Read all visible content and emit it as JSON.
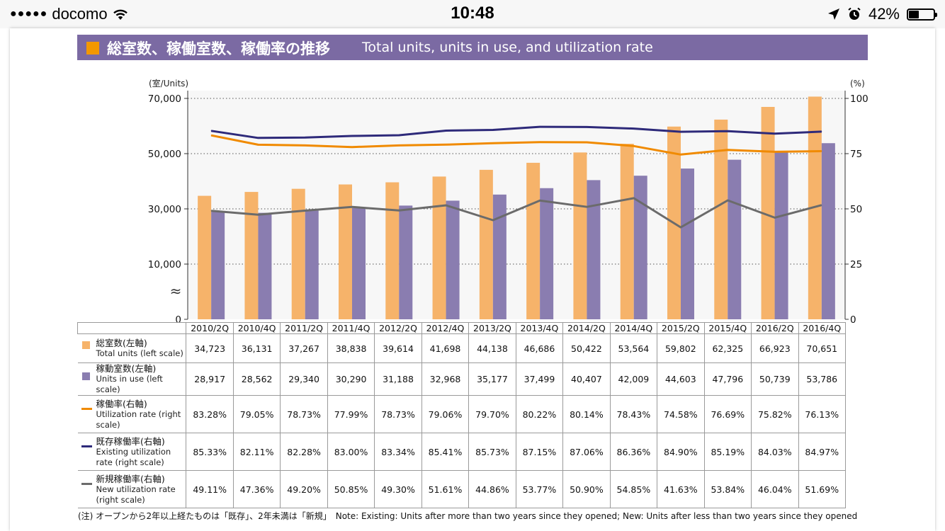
{
  "status_bar": {
    "carrier": "docomo",
    "time": "10:48",
    "battery": "42%",
    "battery_level": 0.42
  },
  "header": {
    "title_jp": "総室数、稼働室数、稼働率の推移",
    "title_en": "Total units, units in use, and utilization rate"
  },
  "chart_data": {
    "type": "bar",
    "left_axis": {
      "label": "(室/Units)",
      "ticks": [
        "0",
        "10,000",
        "30,000",
        "50,000",
        "70,000"
      ],
      "broken_axis_symbol": "≈",
      "segments": [
        {
          "from": 0,
          "to": 0
        },
        {
          "from": 10000,
          "to": 70000
        }
      ]
    },
    "right_axis": {
      "label": "(%)",
      "ticks": [
        "0",
        "25",
        "50",
        "75",
        "100"
      ],
      "ylim": [
        0,
        100
      ]
    },
    "categories": [
      "2010/2Q",
      "2010/4Q",
      "2011/2Q",
      "2011/4Q",
      "2012/2Q",
      "2012/4Q",
      "2013/2Q",
      "2013/4Q",
      "2014/2Q",
      "2014/4Q",
      "2015/2Q",
      "2015/4Q",
      "2016/2Q",
      "2016/4Q"
    ],
    "series": [
      {
        "key": "total",
        "name_jp": "総室数(左軸)",
        "name_en": "Total units (left scale)",
        "kind": "bar",
        "axis": "left",
        "color": "#f6b36a",
        "values": [
          34723,
          36131,
          37267,
          38838,
          39614,
          41698,
          44138,
          46686,
          50422,
          53564,
          59802,
          62325,
          66923,
          70651
        ],
        "labels": [
          "34,723",
          "36,131",
          "37,267",
          "38,838",
          "39,614",
          "41,698",
          "44,138",
          "46,686",
          "50,422",
          "53,564",
          "59,802",
          "62,325",
          "66,923",
          "70,651"
        ]
      },
      {
        "key": "inuse",
        "name_jp": "稼動室数(左軸)",
        "name_en": "Units in use (left scale)",
        "kind": "bar",
        "axis": "left",
        "color": "#8a7db0",
        "values": [
          28917,
          28562,
          29340,
          30290,
          31188,
          32968,
          35177,
          37499,
          40407,
          42009,
          44603,
          47796,
          50739,
          53786
        ],
        "labels": [
          "28,917",
          "28,562",
          "29,340",
          "30,290",
          "31,188",
          "32,968",
          "35,177",
          "37,499",
          "40,407",
          "42,009",
          "44,603",
          "47,796",
          "50,739",
          "53,786"
        ]
      },
      {
        "key": "util",
        "name_jp": "稼働率(右軸)",
        "name_en": "Utilization rate (right scale)",
        "kind": "line",
        "axis": "right",
        "color": "#f08a00",
        "values": [
          83.28,
          79.05,
          78.73,
          77.99,
          78.73,
          79.06,
          79.7,
          80.22,
          80.14,
          78.43,
          74.58,
          76.69,
          75.82,
          76.13
        ],
        "labels": [
          "83.28%",
          "79.05%",
          "78.73%",
          "77.99%",
          "78.73%",
          "79.06%",
          "79.70%",
          "80.22%",
          "80.14%",
          "78.43%",
          "74.58%",
          "76.69%",
          "75.82%",
          "76.13%"
        ]
      },
      {
        "key": "existing",
        "name_jp": "既存稼働率(右軸)",
        "name_en": "Existing utilization rate (right scale)",
        "kind": "line",
        "axis": "right",
        "color": "#2e2a7a",
        "values": [
          85.33,
          82.11,
          82.28,
          83.0,
          83.34,
          85.41,
          85.73,
          87.15,
          87.06,
          86.36,
          84.9,
          85.19,
          84.03,
          84.97
        ],
        "labels": [
          "85.33%",
          "82.11%",
          "82.28%",
          "83.00%",
          "83.34%",
          "85.41%",
          "85.73%",
          "87.15%",
          "87.06%",
          "86.36%",
          "84.90%",
          "85.19%",
          "84.03%",
          "84.97%"
        ]
      },
      {
        "key": "new",
        "name_jp": "新規稼働率(右軸)",
        "name_en": "New utilization rate (right scale)",
        "kind": "line",
        "axis": "right",
        "color": "#6b6b6b",
        "values": [
          49.11,
          47.36,
          49.2,
          50.85,
          49.3,
          51.61,
          44.86,
          53.77,
          50.9,
          54.85,
          41.63,
          53.84,
          46.04,
          51.69
        ],
        "labels": [
          "49.11%",
          "47.36%",
          "49.20%",
          "50.85%",
          "49.30%",
          "51.61%",
          "44.86%",
          "53.77%",
          "50.90%",
          "54.85%",
          "41.63%",
          "53.84%",
          "46.04%",
          "51.69%"
        ]
      }
    ]
  },
  "note": "(注) オープンから2年以上経たものは「既存」、2年未満は「新規」　Note: Existing: Units after more than two years since they opened; New: Units after less than two years since they opened"
}
